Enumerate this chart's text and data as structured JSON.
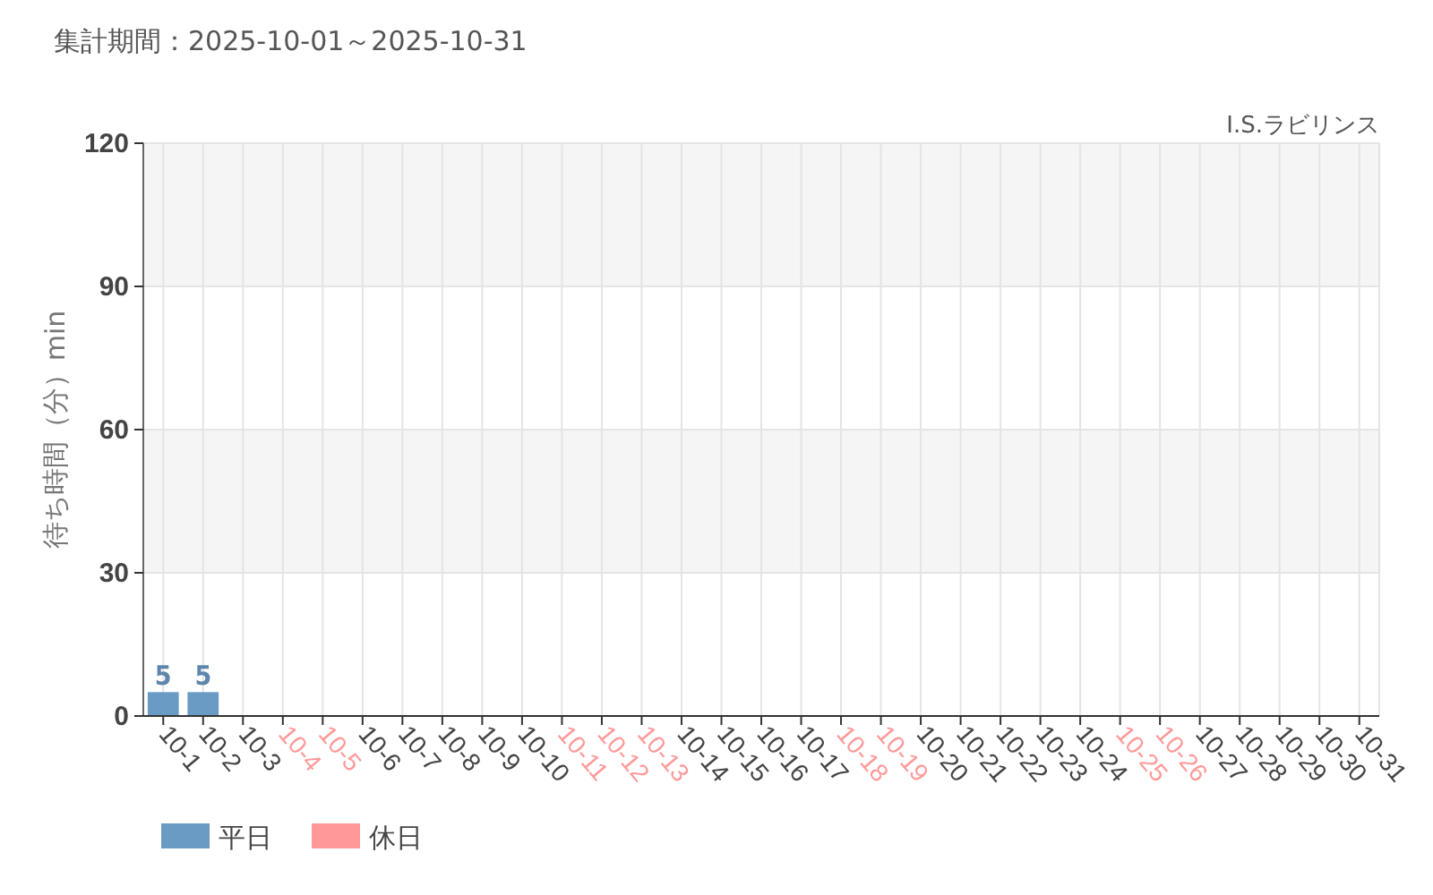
{
  "chart_data": {
    "type": "bar",
    "title": "集計期間：2025-10-01～2025-10-31",
    "subtitle": "I.S.ラビリンス",
    "ylabel": "待ち時間（分）min",
    "categories": [
      "10-1",
      "10-2",
      "10-3",
      "10-4",
      "10-5",
      "10-6",
      "10-7",
      "10-8",
      "10-9",
      "10-10",
      "10-11",
      "10-12",
      "10-13",
      "10-14",
      "10-15",
      "10-16",
      "10-17",
      "10-18",
      "10-19",
      "10-20",
      "10-21",
      "10-22",
      "10-23",
      "10-24",
      "10-25",
      "10-26",
      "10-27",
      "10-28",
      "10-29",
      "10-30",
      "10-31"
    ],
    "colors": [
      "#6a9bc5",
      "#6a9bc5",
      "#6a9bc5",
      "#ff9999",
      "#ff9999",
      "#6a9bc5",
      "#6a9bc5",
      "#6a9bc5",
      "#6a9bc5",
      "#6a9bc5",
      "#ff9999",
      "#ff9999",
      "#ff9999",
      "#6a9bc5",
      "#6a9bc5",
      "#6a9bc5",
      "#6a9bc5",
      "#ff9999",
      "#ff9999",
      "#6a9bc5",
      "#6a9bc5",
      "#6a9bc5",
      "#6a9bc5",
      "#6a9bc5",
      "#ff9999",
      "#ff9999",
      "#6a9bc5",
      "#6a9bc5",
      "#6a9bc5",
      "#6a9bc5",
      "#6a9bc5"
    ],
    "series": [
      {
        "name": "平日",
        "color": "#6a9bc5",
        "values": [
          5,
          5,
          null,
          null,
          null,
          null,
          null,
          null,
          null,
          null,
          null,
          null,
          null,
          null,
          null,
          null,
          null,
          null,
          null,
          null,
          null,
          null,
          null,
          null,
          null,
          null,
          null,
          null,
          null,
          null,
          null
        ]
      },
      {
        "name": "休日",
        "color": "#ff9999",
        "values": [
          null,
          null,
          null,
          null,
          null,
          null,
          null,
          null,
          null,
          null,
          null,
          null,
          null,
          null,
          null,
          null,
          null,
          null,
          null,
          null,
          null,
          null,
          null,
          null,
          null,
          null,
          null,
          null,
          null,
          null,
          null
        ]
      }
    ],
    "stacked": true,
    "ylim": [
      0,
      120
    ],
    "yticks": [
      0,
      30,
      60,
      90,
      120
    ],
    "grid": true,
    "legend": "bottom left",
    "data_labels": true
  }
}
